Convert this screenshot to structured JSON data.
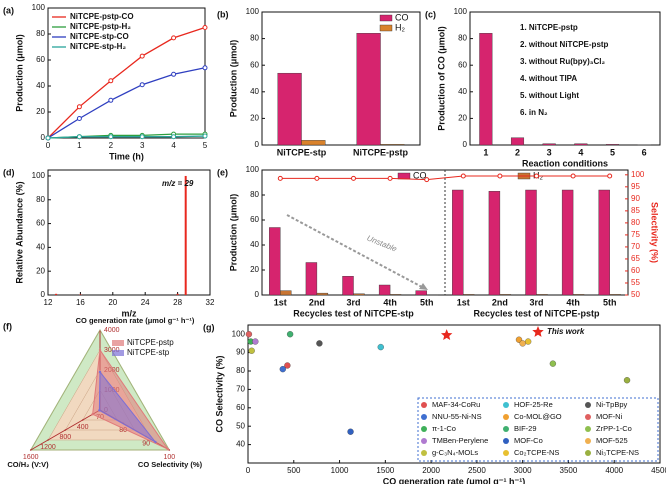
{
  "chart_data": [
    {
      "type": "line",
      "label": "(a)",
      "xlabel": "Time (h)",
      "ylabel": "Production (μmol)",
      "x": [
        0,
        1,
        2,
        3,
        4,
        5
      ],
      "xlim": [
        0,
        5
      ],
      "xticks": [
        0,
        1,
        2,
        3,
        4,
        5
      ],
      "ylim": [
        0,
        100
      ],
      "yticks": [
        0,
        20,
        40,
        60,
        80,
        100
      ],
      "series": [
        {
          "name": "NiTCPE-pstp-CO",
          "color": "#e8281e",
          "values": [
            0,
            24,
            44,
            63,
            77,
            85
          ]
        },
        {
          "name": "NiTCPE-pstp-H₂",
          "color": "#2e9e3e",
          "values": [
            0,
            1,
            2,
            2,
            3,
            3
          ]
        },
        {
          "name": "NiTCPE-stp-CO",
          "color": "#2f3fc0",
          "values": [
            0,
            15,
            29,
            41,
            49,
            54
          ]
        },
        {
          "name": "NiTCPE-stp-H₂",
          "color": "#2aa59a",
          "values": [
            0,
            1,
            1,
            1,
            1,
            1.5
          ]
        }
      ]
    },
    {
      "type": "bar",
      "label": "(b)",
      "ylabel": "Production (μmol)",
      "categories": [
        "NiTCPE-stp",
        "NiTCPE-pstp"
      ],
      "ylim": [
        0,
        100
      ],
      "yticks": [
        0,
        20,
        40,
        60,
        80,
        100
      ],
      "series": [
        {
          "name": "CO",
          "color": "#d6246e",
          "values": [
            54,
            84
          ]
        },
        {
          "name": "H₂",
          "color": "#d9822b",
          "values": [
            3.5,
            0.5
          ]
        }
      ]
    },
    {
      "type": "bar",
      "label": "(c)",
      "xlabel": "Reaction conditions",
      "ylabel": "Production of CO (μmol)",
      "categories": [
        "1",
        "2",
        "3",
        "4",
        "5",
        "6"
      ],
      "values": [
        84,
        5.5,
        1,
        1,
        0.5,
        0.2
      ],
      "color": "#d6246e",
      "ylim": [
        0,
        100
      ],
      "yticks": [
        0,
        20,
        40,
        60,
        80,
        100
      ],
      "annotations": [
        "1. NiTCPE-pstp",
        "2. without NiTCPE-pstp",
        "3. without Ru(bpy)₃Cl₂",
        "4. without TIPA",
        "5. without Light",
        "6. in N₂"
      ]
    },
    {
      "type": "bar",
      "label": "(d)",
      "xlabel": "m/z",
      "ylabel": "Relative Abundance (%)",
      "annotation": "m/z = 29",
      "x": [
        13,
        16,
        28,
        29
      ],
      "values": [
        1,
        0.5,
        1,
        100
      ],
      "color": "#e8281e",
      "xlim": [
        12,
        32
      ],
      "xticks": [
        12,
        16,
        20,
        24,
        28,
        32
      ],
      "ylim": [
        0,
        105
      ],
      "yticks": [
        0,
        20,
        40,
        60,
        80,
        100
      ]
    },
    {
      "type": "bar",
      "label": "(e)",
      "ylabel": "Production (μmol)",
      "y2label": "Selectivity (%)",
      "annotation": "Unstable",
      "categories": [
        "1st",
        "2nd",
        "3rd",
        "4th",
        "5th",
        "1st",
        "2nd",
        "3rd",
        "4th",
        "5th"
      ],
      "group_labels": [
        "Recycles test of NiTCPE-stp",
        "Recycles test of NiTCPE-pstp"
      ],
      "ylim": [
        0,
        100
      ],
      "yticks": [
        0,
        20,
        40,
        60,
        80,
        100
      ],
      "y2lim": [
        50,
        102
      ],
      "y2ticks": [
        50,
        55,
        60,
        65,
        70,
        75,
        80,
        85,
        90,
        95,
        100
      ],
      "series": [
        {
          "name": "CO",
          "color": "#d6246e",
          "values": [
            54,
            26,
            15,
            8,
            3.5,
            84,
            83,
            84,
            84,
            84
          ]
        },
        {
          "name": "H₂",
          "color": "#c87533",
          "values": [
            3.5,
            1.5,
            1,
            0.5,
            0.3,
            0.5,
            0.5,
            0.5,
            0.5,
            0.5
          ]
        },
        {
          "color": "#e8281e",
          "axis": "y2",
          "values": [
            98.5,
            98.5,
            98.5,
            98.5,
            98,
            99.5,
            99.5,
            99.5,
            99.5,
            99.5
          ]
        }
      ]
    },
    {
      "type": "radar",
      "label": "(f)",
      "axes": [
        {
          "label": "CO generation rate (μmol g⁻¹ h⁻¹)",
          "lim": [
            0,
            4000
          ],
          "ticks": [
            0,
            1000,
            2000,
            3000,
            4000
          ]
        },
        {
          "label": "CO Selectivity (%)",
          "lim": [
            70,
            100
          ],
          "ticks": [
            70,
            80,
            90,
            100
          ]
        },
        {
          "label": "CO/H₂ (V:V)",
          "lim": [
            0,
            1600
          ],
          "ticks": [
            400,
            800,
            1200,
            1600
          ]
        }
      ],
      "series": [
        {
          "name": "NiTCPE-pstp",
          "color": "#e07a7a",
          "values": [
            3000,
            99.4,
            170
          ]
        },
        {
          "name": "NiTCPE-stp",
          "color": "#7b6fd6",
          "values": [
            1900,
            94,
            15
          ]
        }
      ]
    },
    {
      "type": "scatter",
      "label": "(g)",
      "xlabel": "CO generation rate (μmol g⁻¹ h⁻¹)",
      "ylabel": "CO Selectivity (%)",
      "xlim": [
        0,
        4500
      ],
      "xticks": [
        0,
        500,
        1000,
        1500,
        2000,
        2500,
        3000,
        3500,
        4000,
        4500
      ],
      "ylim": [
        30,
        105
      ],
      "yticks": [
        40,
        50,
        60,
        70,
        80,
        90,
        100
      ],
      "series": [
        {
          "name": "MAF-34-CoRu",
          "color": "#e05050",
          "x": [
            430
          ],
          "values": [
            83
          ]
        },
        {
          "name": "NNU-55-Ni-NS",
          "color": "#3f6fd0",
          "x": [
            380
          ],
          "values": [
            81
          ]
        },
        {
          "name": "π-1-Co",
          "color": "#3fb05a",
          "x": [
            30
          ],
          "values": [
            96
          ]
        },
        {
          "name": "TMBen-Perylene",
          "color": "#b07ad0",
          "x": [
            80
          ],
          "values": [
            96
          ]
        },
        {
          "name": "g-C₃N₄-MOLs",
          "color": "#c0c040",
          "x": [
            40
          ],
          "values": [
            91
          ]
        },
        {
          "name": "HOF-25-Re",
          "color": "#3fc0d0",
          "x": [
            1450
          ],
          "values": [
            93
          ]
        },
        {
          "name": "Co-MOL@GO",
          "color": "#f0a030",
          "x": [
            2960
          ],
          "values": [
            97
          ]
        },
        {
          "name": "BIF-29",
          "color": "#40b070",
          "x": [
            460
          ],
          "values": [
            100
          ]
        },
        {
          "name": "MOF-Co",
          "color": "#3060c0",
          "x": [
            1120
          ],
          "values": [
            47
          ]
        },
        {
          "name": "Co₂TCPE-NS",
          "color": "#e8c030",
          "x": [
            3060
          ],
          "values": [
            96
          ]
        },
        {
          "name": "Ni-TpBpy",
          "color": "#555555",
          "x": [
            780
          ],
          "values": [
            95
          ]
        },
        {
          "name": "MOF-Ni",
          "color": "#e06060",
          "x": [
            10
          ],
          "values": [
            100
          ]
        },
        {
          "name": "ZrPP-1-Co",
          "color": "#8fbf4f",
          "x": [
            3330
          ],
          "values": [
            84
          ]
        },
        {
          "name": "MOF-525",
          "color": "#f0b050",
          "x": [
            3000
          ],
          "values": [
            95
          ]
        },
        {
          "name": "Ni₃TCPE-NS",
          "color": "#9ab040",
          "x": [
            4140
          ],
          "values": [
            75
          ]
        },
        {
          "name": "This work",
          "color": "#e8281e",
          "marker": "star",
          "x": [
            2170
          ],
          "values": [
            99.5
          ]
        }
      ]
    }
  ]
}
